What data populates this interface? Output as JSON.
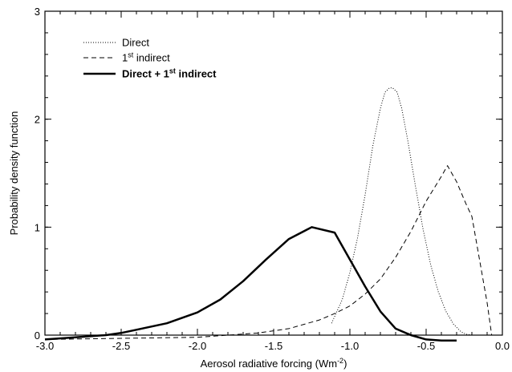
{
  "chart_data": {
    "type": "line",
    "xlabel_main": "Aerosol radiative forcing (Wm",
    "xlabel_sup": "-2",
    "xlabel_end": ")",
    "ylabel": "Probability density function",
    "xlim": [
      -3.0,
      0.0
    ],
    "ylim": [
      0,
      3
    ],
    "xticks": [
      -3.0,
      -2.5,
      -2.0,
      -1.5,
      -1.0,
      -0.5,
      0.0
    ],
    "xtick_labels": [
      "-3.0",
      "-2.5",
      "-2.0",
      "-1.5",
      "-1.0",
      "-0.5",
      "0.0"
    ],
    "yticks": [
      0,
      1,
      2,
      3
    ],
    "ytick_labels": [
      "0",
      "1",
      "2",
      "3"
    ],
    "grid": false,
    "legend_position": "top-left",
    "series": [
      {
        "name": "Direct",
        "style": "dotted",
        "width": 1,
        "x": [
          -1.12,
          -1.05,
          -1.0,
          -0.95,
          -0.9,
          -0.85,
          -0.8,
          -0.77,
          -0.74,
          -0.72,
          -0.69,
          -0.66,
          -0.62,
          -0.57,
          -0.52,
          -0.47,
          -0.42,
          -0.37,
          -0.32,
          -0.27,
          -0.24,
          -0.2
        ],
        "y": [
          0.11,
          0.33,
          0.58,
          0.9,
          1.3,
          1.75,
          2.1,
          2.25,
          2.29,
          2.29,
          2.25,
          2.1,
          1.8,
          1.38,
          0.98,
          0.65,
          0.4,
          0.22,
          0.1,
          0.03,
          0.01,
          0.0
        ]
      },
      {
        "name": "1st indirect",
        "name_main": "1",
        "name_sup": "st",
        "name_end": " indirect",
        "style": "dashed",
        "width": 1,
        "x": [
          -3.0,
          -2.5,
          -2.0,
          -1.8,
          -1.6,
          -1.4,
          -1.3,
          -1.2,
          -1.1,
          -1.0,
          -0.9,
          -0.8,
          -0.7,
          -0.6,
          -0.5,
          -0.4,
          -0.36,
          -0.3,
          -0.24,
          -0.2,
          -0.15,
          -0.1,
          -0.07
        ],
        "y": [
          -0.04,
          -0.03,
          -0.02,
          0.0,
          0.02,
          0.06,
          0.1,
          0.14,
          0.2,
          0.27,
          0.38,
          0.52,
          0.72,
          0.96,
          1.24,
          1.47,
          1.57,
          1.42,
          1.22,
          1.1,
          0.7,
          0.3,
          0.0
        ]
      },
      {
        "name": "Direct + 1st indirect",
        "name_main": "Direct + 1",
        "name_sup": "st",
        "name_end": " indirect",
        "style": "solid",
        "width": 2.5,
        "x": [
          -3.0,
          -2.8,
          -2.6,
          -2.5,
          -2.4,
          -2.2,
          -2.0,
          -1.85,
          -1.7,
          -1.55,
          -1.4,
          -1.25,
          -1.1,
          -1.0,
          -0.9,
          -0.8,
          -0.7,
          -0.6,
          -0.5,
          -0.4,
          -0.3
        ],
        "y": [
          -0.04,
          -0.02,
          0.0,
          0.02,
          0.05,
          0.11,
          0.21,
          0.33,
          0.5,
          0.7,
          0.89,
          1.0,
          0.95,
          0.7,
          0.45,
          0.22,
          0.06,
          0.0,
          -0.04,
          -0.05,
          -0.05
        ]
      }
    ]
  }
}
